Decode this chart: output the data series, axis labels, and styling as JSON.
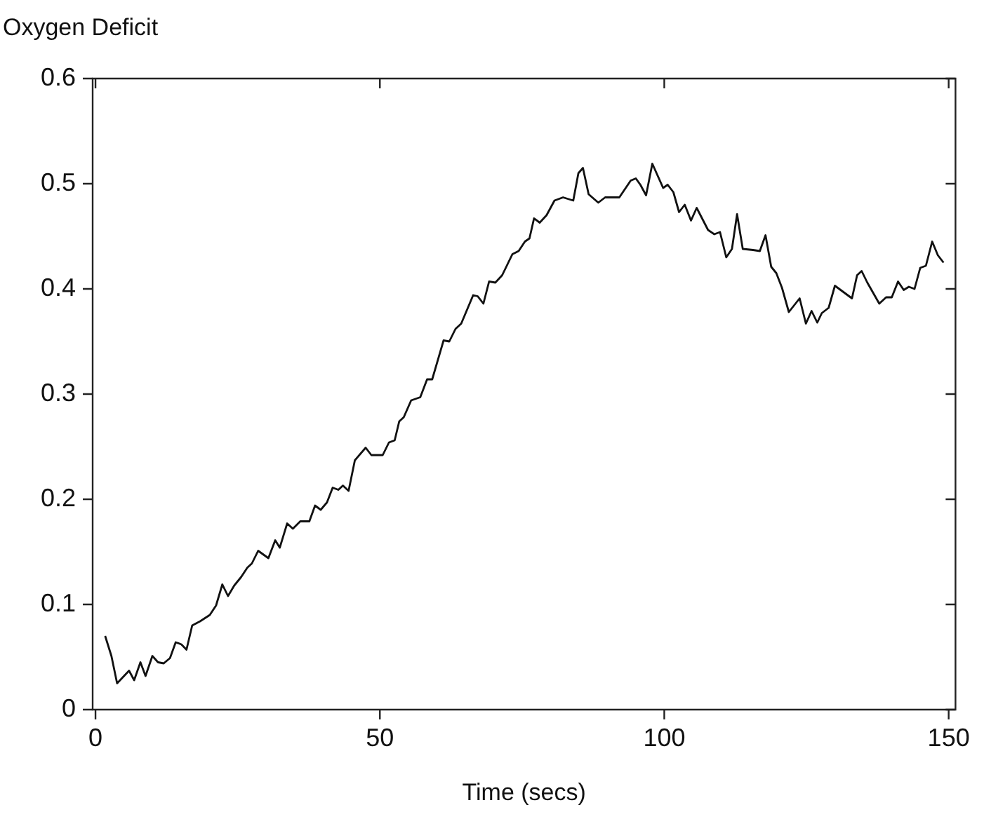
{
  "chart_data": {
    "type": "line",
    "ylabel": "Oxygen Deficit",
    "xlabel": "Time (secs)",
    "xlim": [
      -0.5,
      151.2
    ],
    "xticks": [
      0,
      50,
      100,
      150
    ],
    "ylim": [
      0,
      0.6
    ],
    "yticks": [
      0,
      0.1,
      0.2,
      0.3,
      0.4,
      0.5,
      0.6
    ],
    "grid": false,
    "legend": false,
    "marker": "none",
    "line_style": "solid",
    "series": [
      {
        "color": "#111111",
        "x": [
          1.7,
          2.8,
          3.8,
          5.9,
          6.8,
          7.9,
          8.8,
          10.0,
          11.0,
          12.0,
          13.1,
          14.1,
          15.1,
          16.0,
          17.0,
          18.4,
          20.1,
          21.2,
          22.3,
          23.3,
          24.4,
          25.6,
          26.7,
          27.5,
          28.6,
          30.4,
          31.6,
          32.4,
          33.7,
          34.7,
          36.0,
          37.6,
          38.6,
          39.6,
          40.7,
          41.7,
          42.7,
          43.5,
          44.5,
          45.6,
          47.5,
          48.5,
          50.5,
          51.6,
          52.6,
          53.4,
          54.2,
          55.5,
          57.1,
          58.3,
          59.2,
          61.2,
          62.2,
          63.3,
          64.3,
          66.4,
          67.2,
          68.2,
          69.2,
          70.3,
          71.5,
          73.3,
          74.4,
          75.5,
          76.3,
          77.1,
          78.1,
          79.3,
          80.7,
          82.2,
          84.0,
          84.9,
          85.7,
          86.7,
          88.4,
          89.6,
          92.1,
          94.1,
          95.0,
          95.8,
          96.8,
          97.9,
          99.8,
          100.6,
          101.6,
          102.6,
          103.6,
          104.7,
          105.7,
          107.7,
          108.8,
          109.8,
          110.9,
          111.9,
          112.8,
          113.8,
          115.6,
          116.8,
          117.8,
          118.8,
          119.7,
          120.7,
          121.9,
          123.8,
          124.9,
          125.9,
          126.9,
          127.7,
          128.9,
          130.0,
          133.0,
          133.9,
          134.7,
          135.7,
          137.8,
          139.0,
          140.0,
          141.1,
          142.1,
          143.0,
          144.0,
          145.0,
          146.0,
          147.1,
          148.1,
          149.1
        ],
        "values": [
          0.07,
          0.051,
          0.025,
          0.037,
          0.028,
          0.045,
          0.032,
          0.051,
          0.045,
          0.044,
          0.049,
          0.064,
          0.062,
          0.057,
          0.08,
          0.084,
          0.09,
          0.099,
          0.119,
          0.108,
          0.118,
          0.126,
          0.135,
          0.139,
          0.151,
          0.144,
          0.161,
          0.154,
          0.177,
          0.172,
          0.179,
          0.179,
          0.194,
          0.19,
          0.197,
          0.211,
          0.209,
          0.213,
          0.208,
          0.237,
          0.249,
          0.242,
          0.242,
          0.254,
          0.256,
          0.274,
          0.278,
          0.294,
          0.297,
          0.314,
          0.314,
          0.351,
          0.35,
          0.362,
          0.367,
          0.394,
          0.393,
          0.386,
          0.407,
          0.406,
          0.413,
          0.433,
          0.436,
          0.445,
          0.448,
          0.467,
          0.463,
          0.47,
          0.484,
          0.487,
          0.484,
          0.51,
          0.515,
          0.49,
          0.482,
          0.487,
          0.487,
          0.503,
          0.505,
          0.499,
          0.489,
          0.519,
          0.496,
          0.499,
          0.492,
          0.473,
          0.48,
          0.465,
          0.477,
          0.456,
          0.452,
          0.454,
          0.43,
          0.438,
          0.471,
          0.438,
          0.437,
          0.436,
          0.451,
          0.421,
          0.415,
          0.401,
          0.378,
          0.391,
          0.367,
          0.379,
          0.368,
          0.377,
          0.382,
          0.403,
          0.391,
          0.413,
          0.417,
          0.406,
          0.386,
          0.392,
          0.392,
          0.407,
          0.399,
          0.402,
          0.4,
          0.42,
          0.422,
          0.445,
          0.432,
          0.425
        ]
      }
    ]
  }
}
